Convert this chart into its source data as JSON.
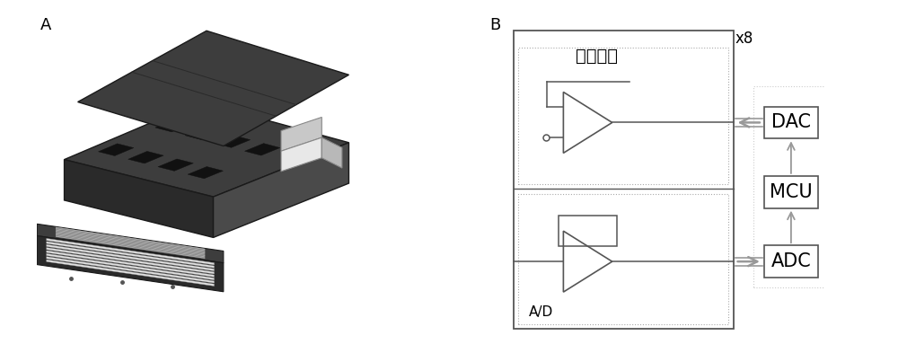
{
  "panel_A_label": "A",
  "panel_B_label": "B",
  "chinese_label": "恒电位仪",
  "ad_label": "A/D",
  "x8_label": "x8",
  "dac_label": "DAC",
  "mcu_label": "MCU",
  "adc_label": "ADC",
  "line_color": "#555555",
  "bg_color": "#ffffff",
  "dotted_color": "#aaaaaa",
  "arrow_color": "#999999",
  "font_size_label": 13,
  "font_size_box": 15,
  "font_size_chinese": 14,
  "font_size_ad": 11
}
